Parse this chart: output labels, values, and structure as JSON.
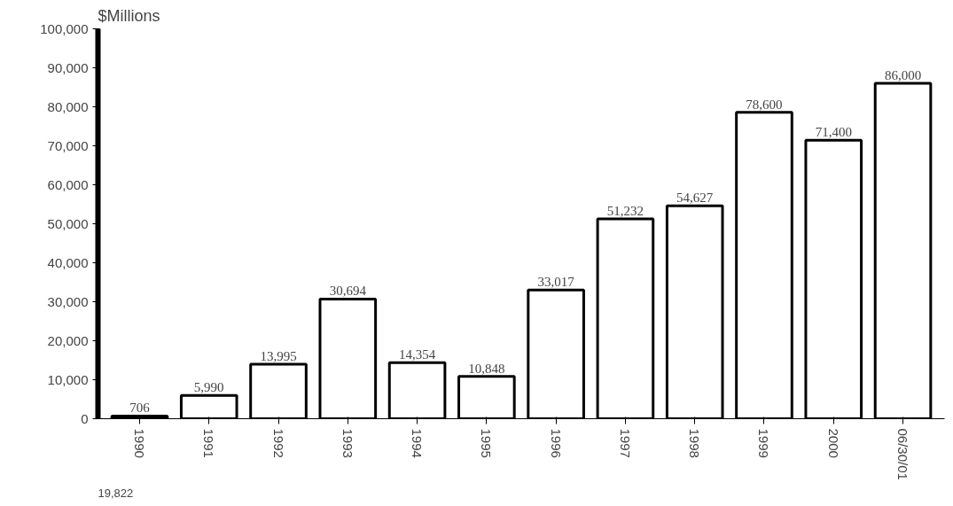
{
  "chart_data": {
    "type": "bar",
    "ylabel": "$Millions",
    "categories": [
      "1990",
      "1991",
      "1992",
      "1993",
      "1994",
      "1995",
      "1996",
      "1997",
      "1998",
      "1999",
      "2000",
      "06/30/01"
    ],
    "values": [
      706,
      5990,
      13995,
      30694,
      14354,
      10848,
      33017,
      51232,
      54627,
      78600,
      71400,
      86000
    ],
    "value_labels": [
      "706",
      "5,990",
      "13,995",
      "30,694",
      "14,354",
      "10,848",
      "33,017",
      "51,232",
      "54,627",
      "78,600",
      "71,400",
      "86,000"
    ],
    "annotations": [
      "19,822"
    ],
    "color": "#ffffff",
    "ylim": [
      0,
      100000
    ],
    "yticks": [
      {
        "value": 0,
        "label": "0"
      },
      {
        "value": 10000,
        "label": "10,000"
      },
      {
        "value": 20000,
        "label": "20,000"
      },
      {
        "value": 30000,
        "label": "30,000"
      },
      {
        "value": 40000,
        "label": "40,000"
      },
      {
        "value": 50000,
        "label": "50,000"
      },
      {
        "value": 60000,
        "label": "60,000"
      },
      {
        "value": 70000,
        "label": "70,000"
      },
      {
        "value": 80000,
        "label": "80,000"
      },
      {
        "value": 90000,
        "label": "90,000"
      },
      {
        "value": 100000,
        "label": "100,000"
      }
    ]
  }
}
